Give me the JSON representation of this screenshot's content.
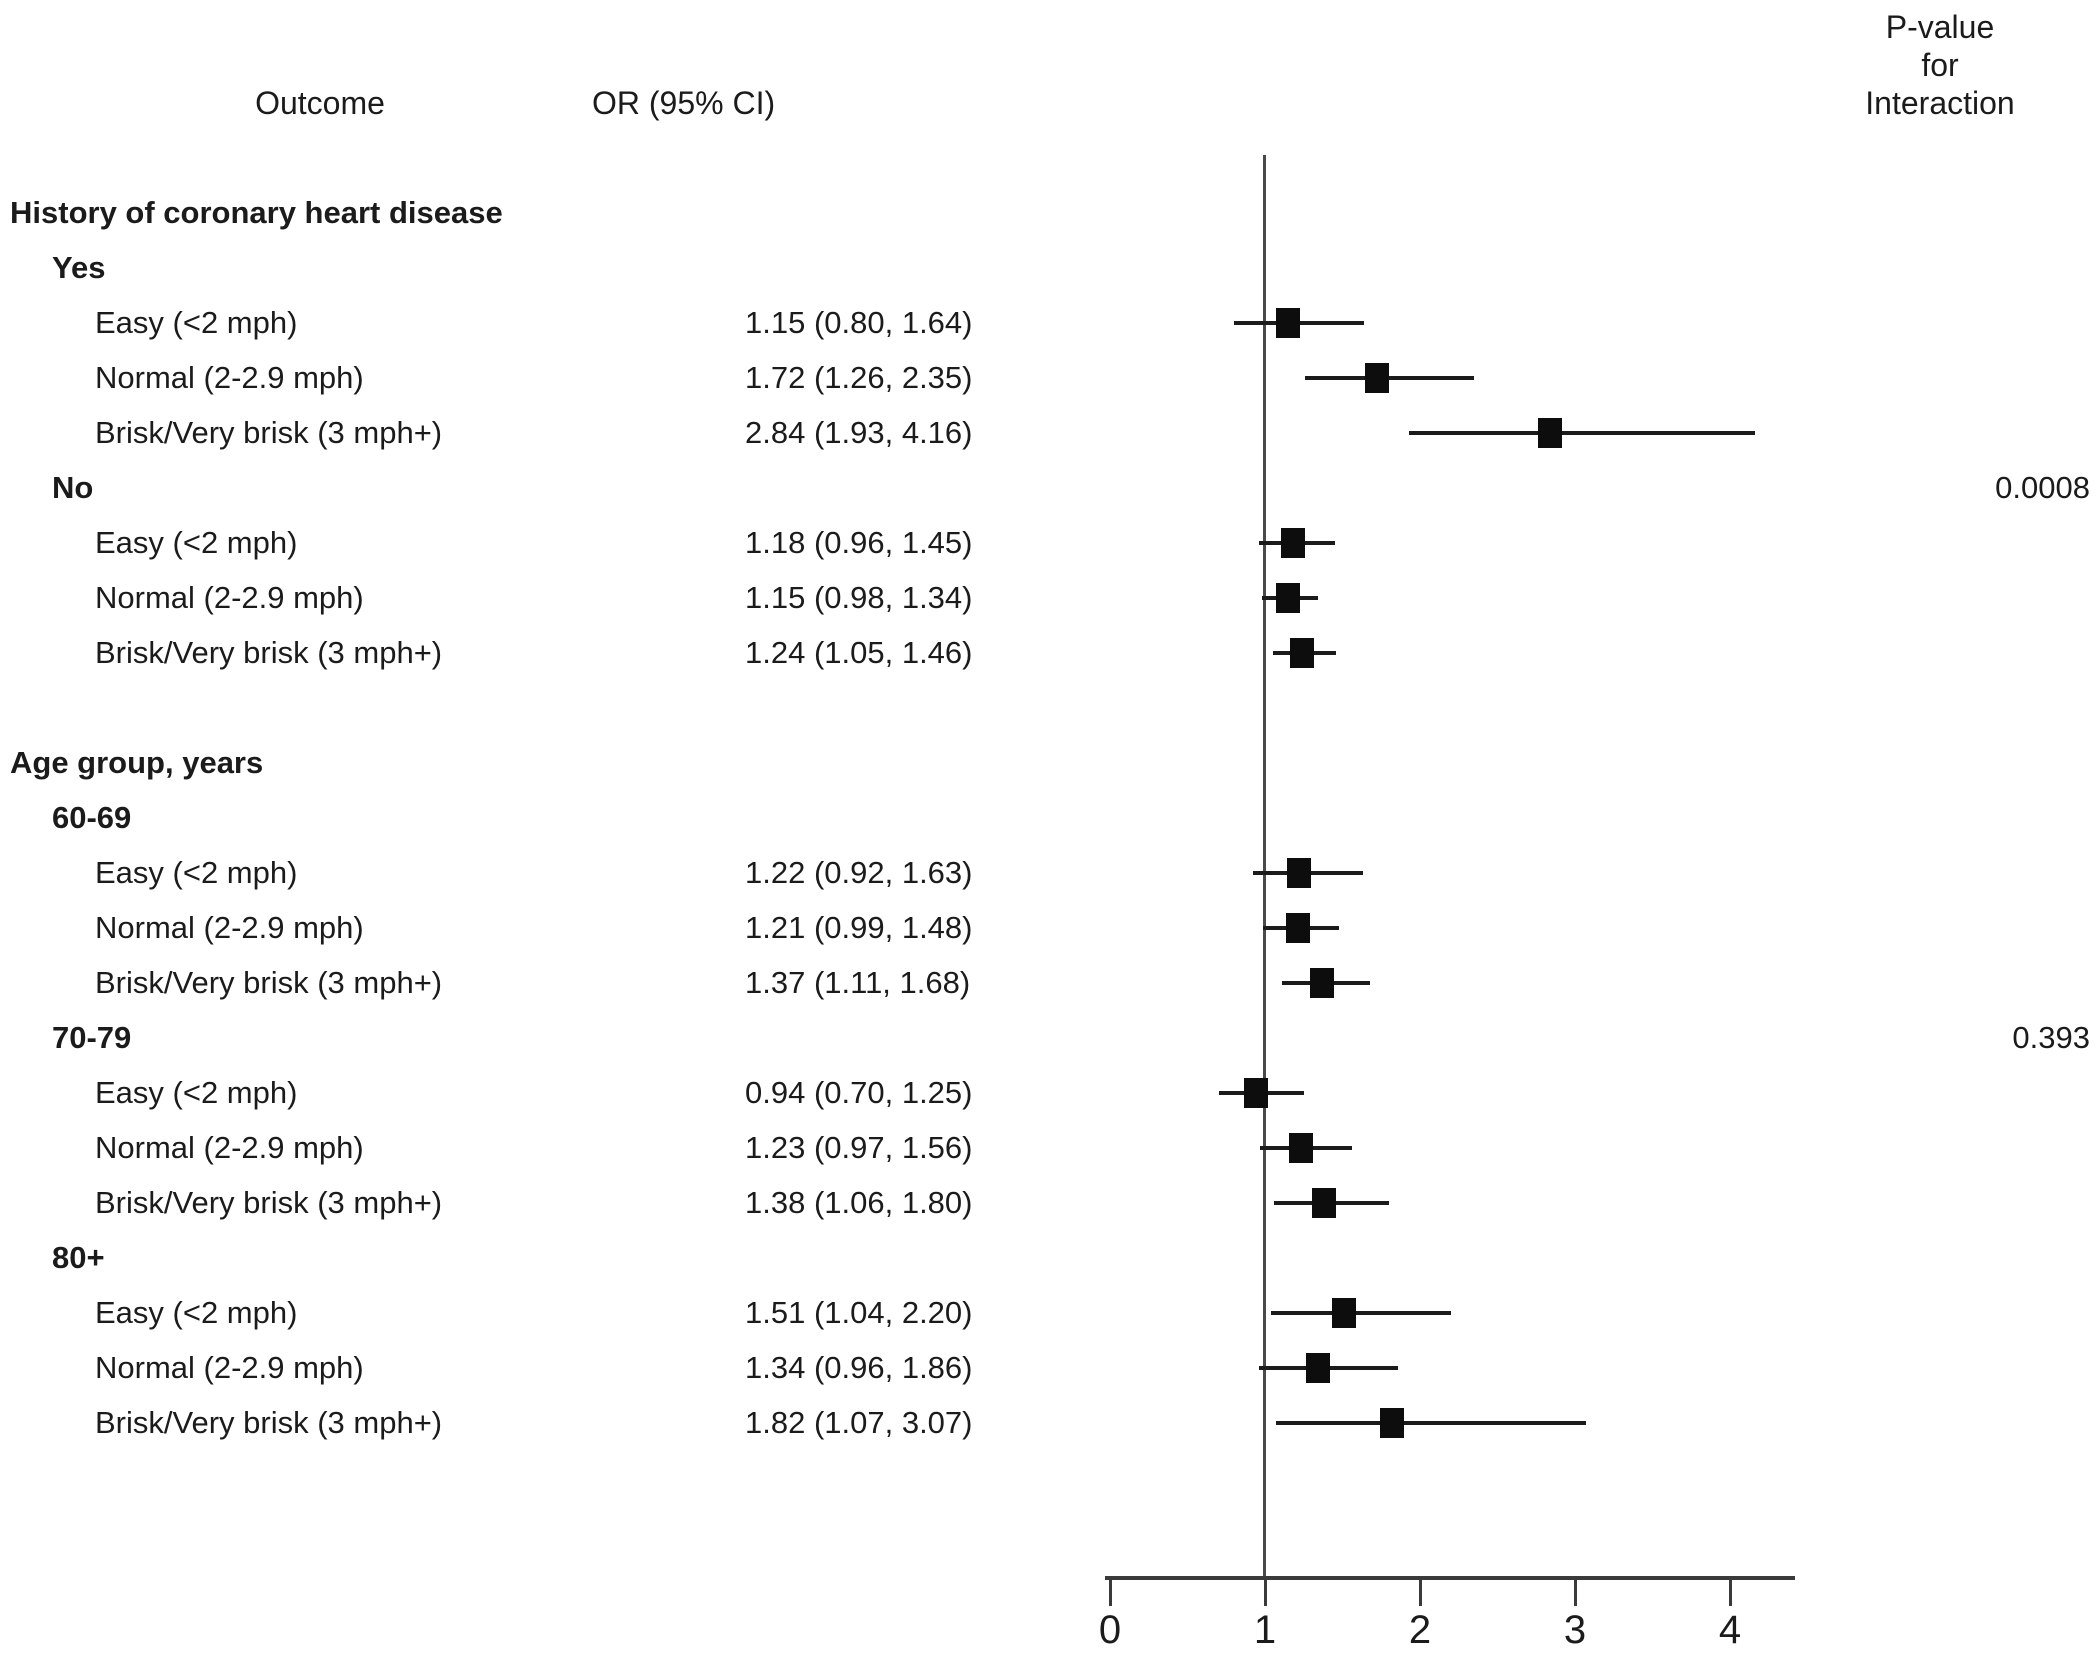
{
  "header": {
    "outcome_label": "Outcome",
    "or_ci_label": "OR (95% CI)",
    "pvalue_line1": "P-value",
    "pvalue_line2": "for",
    "pvalue_line3": "Interaction"
  },
  "chart_data": {
    "type": "forest",
    "title": "",
    "xlabel": "",
    "x_ticks": [
      0,
      1,
      2,
      3,
      4
    ],
    "x_axis_range": [
      0,
      4.4
    ],
    "reference_line_value": 1,
    "marker_color": "#0d0d0d",
    "groups": [
      {
        "section": "History of coronary heart disease",
        "subgroups": [
          {
            "label": "Yes",
            "p_value": "",
            "rows": [
              {
                "label": "Easy (<2 mph)",
                "display": "1.15 (0.80, 1.64)",
                "or": 1.15,
                "ci_low": 0.8,
                "ci_high": 1.64
              },
              {
                "label": "Normal (2-2.9 mph)",
                "display": "1.72 (1.26, 2.35)",
                "or": 1.72,
                "ci_low": 1.26,
                "ci_high": 2.35
              },
              {
                "label": "Brisk/Very brisk (3 mph+)",
                "display": "2.84 (1.93, 4.16)",
                "or": 2.84,
                "ci_low": 1.93,
                "ci_high": 4.16
              }
            ]
          },
          {
            "label": "No",
            "p_value": "0.0008",
            "rows": [
              {
                "label": "Easy (<2 mph)",
                "display": "1.18 (0.96, 1.45)",
                "or": 1.18,
                "ci_low": 0.96,
                "ci_high": 1.45
              },
              {
                "label": "Normal (2-2.9 mph)",
                "display": "1.15 (0.98, 1.34)",
                "or": 1.15,
                "ci_low": 0.98,
                "ci_high": 1.34
              },
              {
                "label": "Brisk/Very brisk (3 mph+)",
                "display": "1.24 (1.05, 1.46)",
                "or": 1.24,
                "ci_low": 1.05,
                "ci_high": 1.46
              }
            ]
          }
        ]
      },
      {
        "section": "Age group, years",
        "subgroups": [
          {
            "label": "60-69",
            "p_value": "",
            "rows": [
              {
                "label": "Easy (<2 mph)",
                "display": "1.22 (0.92, 1.63)",
                "or": 1.22,
                "ci_low": 0.92,
                "ci_high": 1.63
              },
              {
                "label": "Normal (2-2.9 mph)",
                "display": "1.21 (0.99, 1.48)",
                "or": 1.21,
                "ci_low": 0.99,
                "ci_high": 1.48
              },
              {
                "label": "Brisk/Very brisk (3 mph+)",
                "display": "1.37 (1.11, 1.68)",
                "or": 1.37,
                "ci_low": 1.11,
                "ci_high": 1.68
              }
            ]
          },
          {
            "label": "70-79",
            "p_value": "0.393",
            "rows": [
              {
                "label": "Easy (<2 mph)",
                "display": "0.94 (0.70, 1.25)",
                "or": 0.94,
                "ci_low": 0.7,
                "ci_high": 1.25
              },
              {
                "label": "Normal (2-2.9 mph)",
                "display": "1.23 (0.97, 1.56)",
                "or": 1.23,
                "ci_low": 0.97,
                "ci_high": 1.56
              },
              {
                "label": "Brisk/Very brisk (3 mph+)",
                "display": "1.38 (1.06, 1.80)",
                "or": 1.38,
                "ci_low": 1.06,
                "ci_high": 1.8
              }
            ]
          },
          {
            "label": "80+",
            "p_value": "",
            "rows": [
              {
                "label": "Easy (<2 mph)",
                "display": "1.51 (1.04, 2.20)",
                "or": 1.51,
                "ci_low": 1.04,
                "ci_high": 2.2
              },
              {
                "label": "Normal (2-2.9 mph)",
                "display": "1.34 (0.96, 1.86)",
                "or": 1.34,
                "ci_low": 0.96,
                "ci_high": 1.86
              },
              {
                "label": "Brisk/Very brisk (3 mph+)",
                "display": "1.82 (1.07, 3.07)",
                "or": 1.82,
                "ci_low": 1.07,
                "ci_high": 3.07
              }
            ]
          }
        ]
      }
    ]
  }
}
